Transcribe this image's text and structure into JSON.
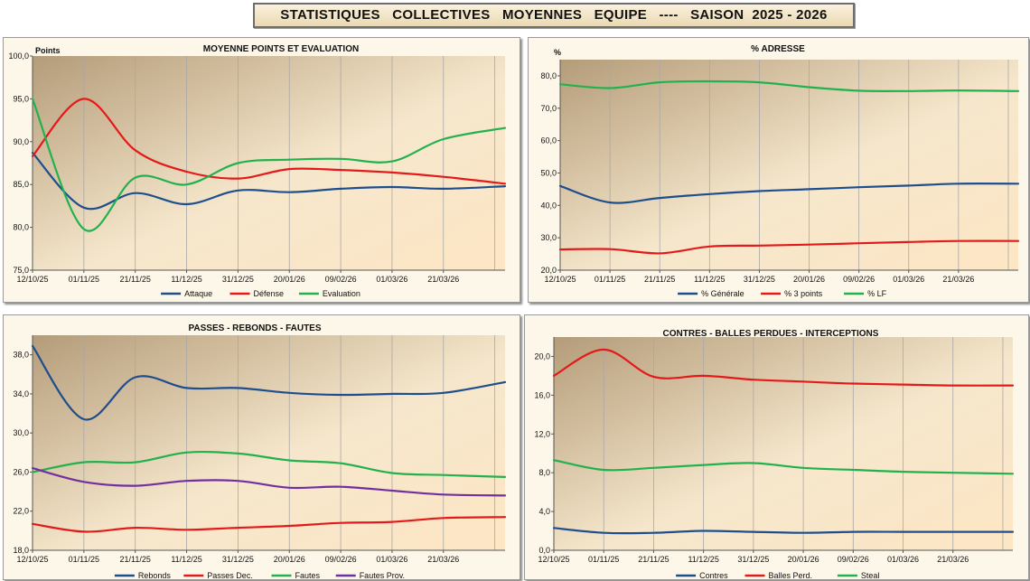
{
  "banner": "STATISTIQUES   COLLECTIVES   MOYENNES   EQUIPE   ----   SAISON  2025 - 2026",
  "colors": {
    "blue": "#1f4e8c",
    "red": "#e31a1a",
    "green": "#22b14c",
    "purple": "#7030a0"
  },
  "chart_data": [
    {
      "id": "c1",
      "type": "line",
      "title": "MOYENNE  POINTS  ET  EVALUATION",
      "ylabel": "Points",
      "ylim": [
        75,
        100
      ],
      "yticks": [
        75,
        80,
        85,
        90,
        95,
        100
      ],
      "decimals": 1,
      "x": [
        0,
        1,
        2,
        3,
        4,
        5,
        6,
        7,
        8,
        9.2
      ],
      "xticklabels": [
        "12/10/25",
        "01/11/25",
        "21/11/25",
        "11/12/25",
        "31/12/25",
        "20/01/26",
        "09/02/26",
        "01/03/26",
        "21/03/26"
      ],
      "series": [
        {
          "name": "Attaque",
          "color": "#1f4e8c",
          "values": [
            88.7,
            82.3,
            84.0,
            82.7,
            84.3,
            84.1,
            84.5,
            84.7,
            84.5,
            84.8
          ]
        },
        {
          "name": "Défense",
          "color": "#e31a1a",
          "values": [
            88.3,
            95.0,
            89.0,
            86.5,
            85.7,
            86.8,
            86.7,
            86.4,
            85.9,
            85.1
          ]
        },
        {
          "name": "Evaluation",
          "color": "#22b14c",
          "values": [
            95.0,
            79.8,
            85.8,
            85.0,
            87.5,
            87.9,
            88.0,
            87.7,
            90.3,
            91.6
          ]
        }
      ]
    },
    {
      "id": "c2",
      "type": "line",
      "title": "% ADRESSE",
      "ylabel": "%",
      "ylim": [
        20,
        85
      ],
      "yticks": [
        20,
        30,
        40,
        50,
        60,
        70,
        80
      ],
      "decimals": 1,
      "x": [
        0,
        1,
        2,
        3,
        4,
        5,
        6,
        7,
        8,
        9.2
      ],
      "xticklabels": [
        "12/10/25",
        "01/11/25",
        "21/11/25",
        "11/12/25",
        "31/12/25",
        "20/01/26",
        "09/02/26",
        "01/03/26",
        "21/03/26"
      ],
      "series": [
        {
          "name": "% Générale",
          "color": "#1f4e8c",
          "values": [
            46.0,
            40.9,
            42.3,
            43.5,
            44.4,
            45.0,
            45.6,
            46.1,
            46.7,
            46.7
          ]
        },
        {
          "name": "% 3 points",
          "color": "#e31a1a",
          "values": [
            26.4,
            26.5,
            25.2,
            27.3,
            27.6,
            27.9,
            28.3,
            28.7,
            29.0,
            29.0
          ]
        },
        {
          "name": "% LF",
          "color": "#22b14c",
          "values": [
            77.4,
            76.2,
            78.0,
            78.3,
            78.0,
            76.5,
            75.4,
            75.3,
            75.5,
            75.3
          ]
        }
      ]
    },
    {
      "id": "c3",
      "type": "line",
      "title": "PASSES  -  REBONDS  -  FAUTES",
      "ylabel": "",
      "ylim": [
        18,
        40
      ],
      "yticks": [
        18,
        22,
        26,
        30,
        34,
        38
      ],
      "decimals": 1,
      "x": [
        0,
        1,
        2,
        3,
        4,
        5,
        6,
        7,
        8,
        9.2
      ],
      "xticklabels": [
        "12/10/25",
        "01/11/25",
        "21/11/25",
        "11/12/25",
        "31/12/25",
        "20/01/26",
        "09/02/26",
        "01/03/26",
        "21/03/26"
      ],
      "series": [
        {
          "name": "Rebonds",
          "color": "#1f4e8c",
          "values": [
            38.9,
            31.4,
            35.7,
            34.6,
            34.6,
            34.1,
            33.9,
            34.0,
            34.1,
            35.2
          ]
        },
        {
          "name": "Passes Dec.",
          "color": "#e31a1a",
          "values": [
            20.7,
            19.9,
            20.3,
            20.1,
            20.3,
            20.5,
            20.8,
            20.9,
            21.3,
            21.4
          ]
        },
        {
          "name": "Fautes",
          "color": "#22b14c",
          "values": [
            26.0,
            27.0,
            27.0,
            28.0,
            27.9,
            27.2,
            26.9,
            25.9,
            25.7,
            25.5
          ]
        },
        {
          "name": "Fautes Prov.",
          "color": "#7030a0",
          "values": [
            26.4,
            25.0,
            24.6,
            25.1,
            25.1,
            24.4,
            24.5,
            24.1,
            23.7,
            23.6
          ]
        }
      ]
    },
    {
      "id": "c4",
      "type": "line",
      "title": "CONTRES  -  BALLES PERDUES  -  INTERCEPTIONS",
      "ylabel": "",
      "ylim": [
        0,
        22
      ],
      "yticks": [
        0,
        4,
        8,
        12,
        16,
        20
      ],
      "decimals": 1,
      "x": [
        0,
        1,
        2,
        3,
        4,
        5,
        6,
        7,
        8,
        9.2
      ],
      "xticklabels": [
        "12/10/25",
        "01/11/25",
        "21/11/25",
        "11/12/25",
        "31/12/25",
        "20/01/26",
        "09/02/26",
        "01/03/26",
        "21/03/26"
      ],
      "series": [
        {
          "name": "Contres",
          "color": "#1f4e8c",
          "values": [
            2.3,
            1.8,
            1.8,
            2.0,
            1.9,
            1.8,
            1.9,
            1.9,
            1.9,
            1.9
          ]
        },
        {
          "name": "Balles Perd.",
          "color": "#e31a1a",
          "values": [
            18.0,
            20.7,
            17.9,
            18.0,
            17.6,
            17.4,
            17.2,
            17.1,
            17.0,
            17.0
          ]
        },
        {
          "name": "Steal",
          "color": "#22b14c",
          "values": [
            9.3,
            8.3,
            8.5,
            8.8,
            9.0,
            8.5,
            8.3,
            8.1,
            8.0,
            7.9
          ]
        }
      ]
    }
  ]
}
